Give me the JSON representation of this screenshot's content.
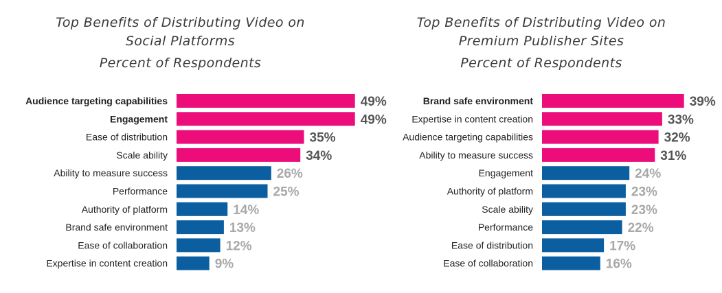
{
  "chart_data": [
    {
      "type": "bar",
      "orientation": "horizontal",
      "title": "Top Benefits of Distributing Video on Social Platforms",
      "title_lines": [
        "Top Benefits of Distributing Video on",
        "Social Platforms"
      ],
      "subtitle": "Percent of Respondents",
      "categories": [
        "Audience targeting capabilities",
        "Engagement",
        "Ease of distribution",
        "Scale ability",
        "Ability to measure success",
        "Performance",
        "Authority of platform",
        "Brand safe environment",
        "Ease of collaboration",
        "Expertise in content creation"
      ],
      "values": [
        49,
        49,
        35,
        34,
        26,
        25,
        14,
        13,
        12,
        9
      ],
      "value_labels": [
        "49%",
        "49%",
        "35%",
        "34%",
        "26%",
        "25%",
        "14%",
        "13%",
        "12%",
        "9%"
      ],
      "highlight": [
        true,
        true,
        true,
        true,
        false,
        false,
        false,
        false,
        false,
        false
      ],
      "bold_labels": [
        true,
        true,
        false,
        false,
        false,
        false,
        false,
        false,
        false,
        false
      ],
      "xlim": [
        0,
        50
      ]
    },
    {
      "type": "bar",
      "orientation": "horizontal",
      "title": "Top Benefits of Distributing Video on Premium Publisher Sites",
      "title_lines": [
        "Top Benefits of Distributing Video on",
        "Premium Publisher Sites"
      ],
      "subtitle": "Percent of Respondents",
      "categories": [
        "Brand safe environment",
        "Expertise in content creation",
        "Audience targeting capabilities",
        "Ability to measure success",
        "Engagement",
        "Authority of platform",
        "Scale ability",
        "Performance",
        "Ease of distribution",
        "Ease of collaboration"
      ],
      "values": [
        39,
        33,
        32,
        31,
        24,
        23,
        23,
        22,
        17,
        16
      ],
      "value_labels": [
        "39%",
        "33%",
        "32%",
        "31%",
        "24%",
        "23%",
        "23%",
        "22%",
        "17%",
        "16%"
      ],
      "highlight": [
        true,
        true,
        true,
        true,
        false,
        false,
        false,
        false,
        false,
        false
      ],
      "bold_labels": [
        true,
        false,
        false,
        false,
        false,
        false,
        false,
        false,
        false,
        false
      ],
      "xlim": [
        0,
        50
      ]
    }
  ],
  "colors": {
    "highlight_bar": "#ec0c7a",
    "normal_bar": "#0b5e9f",
    "highlight_value": "#555555",
    "normal_value": "#a8a8a8"
  }
}
